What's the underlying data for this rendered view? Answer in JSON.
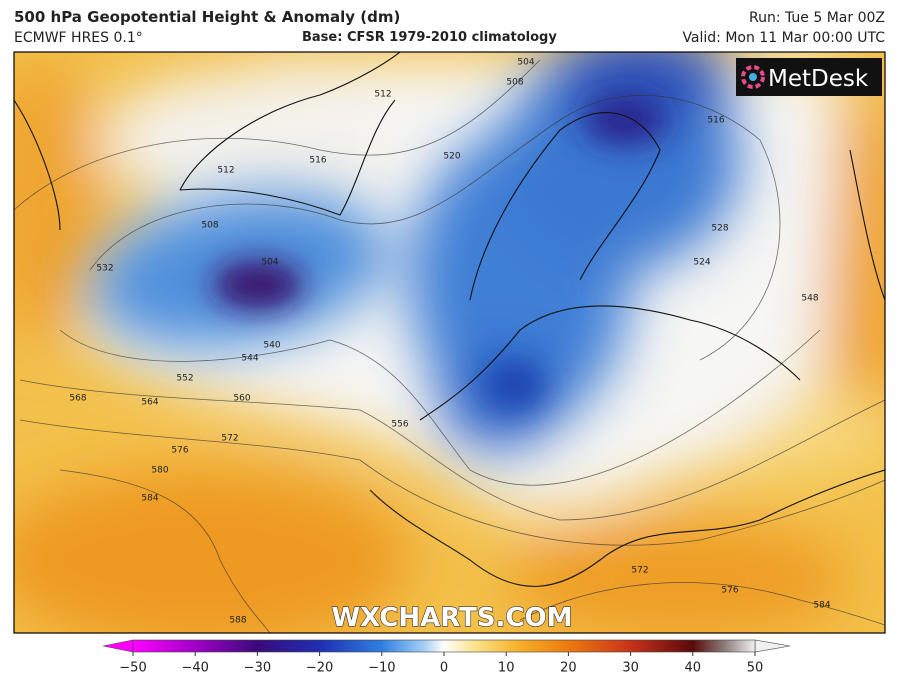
{
  "header": {
    "title": "500 hPa Geopotential Height & Anomaly (dm)",
    "model": "ECMWF HRES 0.1°",
    "base": "Base: CFSR 1979-2010 climatology",
    "run": "Run: Tue 5 Mar 00Z",
    "valid": "Valid: Mon 11 Mar 00:00 UTC"
  },
  "map": {
    "logo": "MetDesk",
    "watermark": "WXCHARTS.COM",
    "contour_labels": [
      504,
      508,
      512,
      516,
      516,
      520,
      512,
      508,
      504,
      532,
      524,
      528,
      548,
      540,
      544,
      552,
      568,
      564,
      560,
      556,
      572,
      576,
      580,
      584,
      588,
      572,
      576,
      584
    ]
  },
  "colorbar": {
    "ticks": [
      {
        "value": -50,
        "label": "−50"
      },
      {
        "value": -40,
        "label": "−40"
      },
      {
        "value": -30,
        "label": "−30"
      },
      {
        "value": -20,
        "label": "−20"
      },
      {
        "value": -10,
        "label": "−10"
      },
      0,
      10,
      20,
      30,
      40,
      50
    ]
  }
}
